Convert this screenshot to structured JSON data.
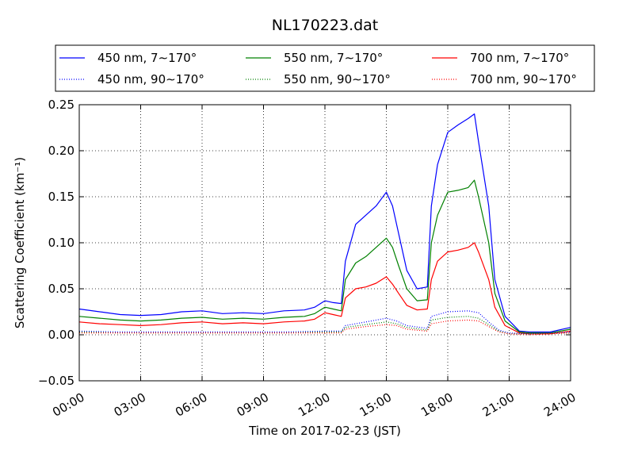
{
  "chart_data": {
    "type": "line",
    "title": "NL170223.dat",
    "xlabel": "Time on 2017-02-23 (JST)",
    "ylabel": "Scattering Coefficient (km⁻¹)",
    "xlim": [
      0,
      24
    ],
    "ylim": [
      -0.05,
      0.25
    ],
    "x_ticks": [
      0,
      3,
      6,
      9,
      12,
      15,
      18,
      21,
      24
    ],
    "x_tick_labels": [
      "00:00",
      "03:00",
      "06:00",
      "09:00",
      "12:00",
      "15:00",
      "18:00",
      "21:00",
      "24:00"
    ],
    "y_ticks": [
      -0.05,
      0.0,
      0.05,
      0.1,
      0.15,
      0.2,
      0.25
    ],
    "y_tick_labels": [
      "−0.05",
      "0.00",
      "0.05",
      "0.10",
      "0.15",
      "0.20",
      "0.25"
    ],
    "grid": true,
    "legend_position": "top",
    "series": [
      {
        "name": "450 nm, 7∼170°",
        "color": "#0000ff",
        "style": "solid",
        "x": [
          0,
          1,
          2,
          3,
          4,
          5,
          6,
          7,
          8,
          9,
          10,
          11,
          11.5,
          12,
          12.4,
          12.8,
          13.0,
          13.5,
          14.0,
          14.5,
          15.0,
          15.3,
          15.6,
          16.0,
          16.5,
          17.0,
          17.2,
          17.5,
          18.0,
          18.5,
          19.0,
          19.3,
          19.5,
          20.0,
          20.3,
          20.8,
          21.5,
          22,
          23,
          24
        ],
        "y": [
          0.028,
          0.025,
          0.022,
          0.021,
          0.022,
          0.025,
          0.026,
          0.023,
          0.024,
          0.023,
          0.026,
          0.027,
          0.03,
          0.037,
          0.035,
          0.034,
          0.08,
          0.12,
          0.13,
          0.14,
          0.155,
          0.14,
          0.11,
          0.07,
          0.05,
          0.052,
          0.14,
          0.185,
          0.22,
          0.228,
          0.235,
          0.24,
          0.21,
          0.14,
          0.06,
          0.02,
          0.004,
          0.003,
          0.003,
          0.008
        ]
      },
      {
        "name": "550 nm, 7∼170°",
        "color": "#008000",
        "style": "solid",
        "x": [
          0,
          1,
          2,
          3,
          4,
          5,
          6,
          7,
          8,
          9,
          10,
          11,
          11.5,
          12,
          12.4,
          12.8,
          13.0,
          13.5,
          14.0,
          14.5,
          15.0,
          15.3,
          15.6,
          16.0,
          16.5,
          17.0,
          17.2,
          17.5,
          18.0,
          18.5,
          19.0,
          19.3,
          19.5,
          20.0,
          20.3,
          20.8,
          21.5,
          22,
          23,
          24
        ],
        "y": [
          0.02,
          0.018,
          0.016,
          0.015,
          0.016,
          0.018,
          0.019,
          0.017,
          0.018,
          0.017,
          0.019,
          0.02,
          0.023,
          0.03,
          0.028,
          0.026,
          0.06,
          0.078,
          0.085,
          0.095,
          0.105,
          0.095,
          0.075,
          0.05,
          0.037,
          0.038,
          0.1,
          0.13,
          0.155,
          0.157,
          0.16,
          0.168,
          0.15,
          0.1,
          0.045,
          0.015,
          0.003,
          0.002,
          0.002,
          0.006
        ]
      },
      {
        "name": "700 nm, 7∼170°",
        "color": "#ff0000",
        "style": "solid",
        "x": [
          0,
          1,
          2,
          3,
          4,
          5,
          6,
          7,
          8,
          9,
          10,
          11,
          11.5,
          12,
          12.4,
          12.8,
          13.0,
          13.5,
          14.0,
          14.5,
          15.0,
          15.3,
          15.6,
          16.0,
          16.5,
          17.0,
          17.2,
          17.5,
          18.0,
          18.5,
          19.0,
          19.3,
          19.5,
          20.0,
          20.3,
          20.8,
          21.5,
          22,
          23,
          24
        ],
        "y": [
          0.014,
          0.012,
          0.011,
          0.01,
          0.011,
          0.013,
          0.014,
          0.012,
          0.013,
          0.012,
          0.014,
          0.015,
          0.017,
          0.024,
          0.022,
          0.02,
          0.04,
          0.05,
          0.052,
          0.056,
          0.063,
          0.055,
          0.045,
          0.032,
          0.027,
          0.028,
          0.06,
          0.08,
          0.09,
          0.092,
          0.095,
          0.1,
          0.09,
          0.06,
          0.03,
          0.01,
          0.002,
          0.001,
          0.001,
          0.004
        ]
      },
      {
        "name": "450 nm, 90∼170°",
        "color": "#0000ff",
        "style": "dotted",
        "x": [
          0,
          2,
          4,
          6,
          8,
          10,
          12,
          12.8,
          13.0,
          14,
          15,
          15.5,
          16,
          17,
          17.2,
          18,
          19,
          19.5,
          20,
          20.5,
          21,
          22,
          24
        ],
        "y": [
          0.004,
          0.003,
          0.003,
          0.003,
          0.003,
          0.003,
          0.004,
          0.004,
          0.01,
          0.014,
          0.018,
          0.015,
          0.01,
          0.007,
          0.02,
          0.025,
          0.026,
          0.024,
          0.014,
          0.005,
          0.002,
          0.001,
          0.003
        ]
      },
      {
        "name": "550 nm, 90∼170°",
        "color": "#008000",
        "style": "dotted",
        "x": [
          0,
          2,
          4,
          6,
          8,
          10,
          12,
          12.8,
          13.0,
          14,
          15,
          15.5,
          16,
          17,
          17.2,
          18,
          19,
          19.5,
          20,
          20.5,
          21,
          22,
          24
        ],
        "y": [
          0.003,
          0.002,
          0.002,
          0.002,
          0.002,
          0.002,
          0.003,
          0.003,
          0.008,
          0.011,
          0.014,
          0.012,
          0.008,
          0.005,
          0.016,
          0.019,
          0.02,
          0.018,
          0.011,
          0.004,
          0.001,
          0.001,
          0.002
        ]
      },
      {
        "name": "700 nm, 90∼170°",
        "color": "#ff0000",
        "style": "dotted",
        "x": [
          0,
          2,
          4,
          6,
          8,
          10,
          12,
          12.8,
          13.0,
          14,
          15,
          15.5,
          16,
          17,
          17.2,
          18,
          19,
          19.5,
          20,
          20.5,
          21,
          22,
          24
        ],
        "y": [
          0.002,
          0.002,
          0.002,
          0.002,
          0.002,
          0.002,
          0.002,
          0.002,
          0.006,
          0.009,
          0.011,
          0.01,
          0.006,
          0.004,
          0.012,
          0.015,
          0.016,
          0.015,
          0.009,
          0.003,
          0.001,
          0.0,
          0.002
        ]
      }
    ]
  }
}
